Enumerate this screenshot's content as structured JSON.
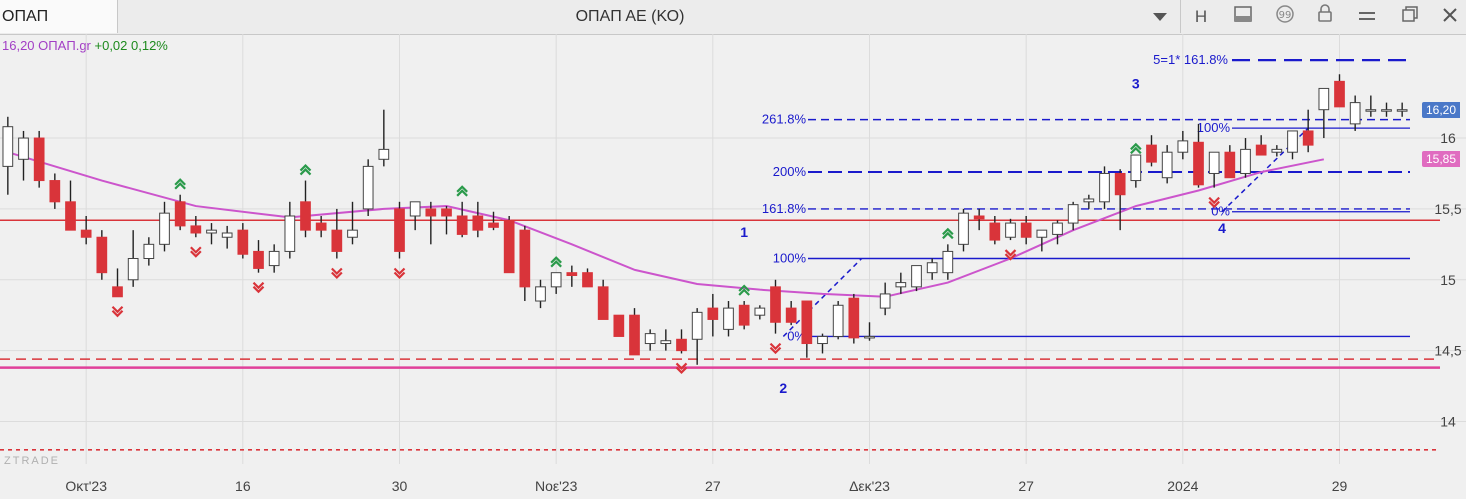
{
  "toolbar": {
    "symbol_input": "ΟΠΑΠ",
    "title": "ΟΠΑΠ ΑΕ (ΚΟ)",
    "icons": [
      "chevron-down-icon",
      "h-icon",
      "panel-icon",
      "quote-icon",
      "lock-icon",
      "minimize-icon",
      "restore-icon",
      "close-icon"
    ],
    "h_label": "H"
  },
  "quote": {
    "price_symbol": "16,20 ΟΠΑΠ.gr",
    "change": "+0,02 0,12%"
  },
  "colors": {
    "up_candle": "#ffffff",
    "down_candle": "#d9343a",
    "ma": "#cc55cc",
    "fib": "#1a1acc",
    "support": "#d9343a",
    "magenta": "#e0409a",
    "accent_tag_blue": "#4a78c8",
    "accent_tag_pink": "#e06cc0"
  },
  "price_tags": {
    "last": "16,20",
    "ma": "15,85"
  },
  "watermark": "ZTRADE",
  "chart_data": {
    "type": "candlestick",
    "x_tick_labels": [
      "Οκτ'23",
      "16",
      "30",
      "Νοε'23",
      "27",
      "Δεκ'23",
      "27",
      "2024",
      "29"
    ],
    "x_tick_positions": [
      5,
      15,
      25,
      35,
      45,
      55,
      65,
      75,
      85
    ],
    "y_ticks": [
      14,
      14.5,
      15,
      15.5,
      16
    ],
    "y_tick_labels": [
      "14",
      "14,5",
      "15",
      "15,5",
      "16"
    ],
    "ylim": [
      13.7,
      16.72
    ],
    "x_count": 90,
    "candles": [
      [
        15.8,
        16.15,
        15.6,
        16.08
      ],
      [
        15.85,
        16.05,
        15.7,
        16.0
      ],
      [
        16.0,
        16.05,
        15.65,
        15.7
      ],
      [
        15.7,
        15.75,
        15.5,
        15.55
      ],
      [
        15.55,
        15.7,
        15.35,
        15.35
      ],
      [
        15.35,
        15.45,
        15.25,
        15.3
      ],
      [
        15.3,
        15.35,
        15.0,
        15.05
      ],
      [
        14.95,
        15.08,
        14.88,
        14.88
      ],
      [
        15.0,
        15.35,
        14.95,
        15.15
      ],
      [
        15.15,
        15.3,
        15.1,
        15.25
      ],
      [
        15.25,
        15.55,
        15.2,
        15.47
      ],
      [
        15.55,
        15.6,
        15.35,
        15.38
      ],
      [
        15.38,
        15.45,
        15.3,
        15.33
      ],
      [
        15.33,
        15.4,
        15.25,
        15.35
      ],
      [
        15.3,
        15.38,
        15.22,
        15.33
      ],
      [
        15.35,
        15.4,
        15.15,
        15.18
      ],
      [
        15.2,
        15.28,
        15.05,
        15.08
      ],
      [
        15.1,
        15.25,
        15.05,
        15.2
      ],
      [
        15.2,
        15.55,
        15.15,
        15.45
      ],
      [
        15.55,
        15.7,
        15.3,
        15.35
      ],
      [
        15.4,
        15.45,
        15.3,
        15.35
      ],
      [
        15.35,
        15.5,
        15.15,
        15.2
      ],
      [
        15.3,
        15.55,
        15.25,
        15.35
      ],
      [
        15.5,
        15.85,
        15.45,
        15.8
      ],
      [
        15.85,
        16.2,
        15.8,
        15.92
      ],
      [
        15.5,
        15.55,
        15.15,
        15.2
      ],
      [
        15.45,
        15.55,
        15.35,
        15.55
      ],
      [
        15.5,
        15.55,
        15.25,
        15.45
      ],
      [
        15.5,
        15.52,
        15.32,
        15.45
      ],
      [
        15.45,
        15.55,
        15.3,
        15.32
      ],
      [
        15.45,
        15.55,
        15.3,
        15.35
      ],
      [
        15.4,
        15.48,
        15.35,
        15.37
      ],
      [
        15.42,
        15.45,
        15.05,
        15.05
      ],
      [
        15.35,
        15.38,
        14.85,
        14.95
      ],
      [
        14.85,
        15.0,
        14.8,
        14.95
      ],
      [
        14.95,
        15.05,
        14.9,
        15.05
      ],
      [
        15.05,
        15.1,
        14.95,
        15.03
      ],
      [
        15.05,
        15.08,
        14.95,
        14.95
      ],
      [
        14.95,
        15.0,
        14.72,
        14.72
      ],
      [
        14.75,
        14.75,
        14.6,
        14.6
      ],
      [
        14.75,
        14.8,
        14.47,
        14.47
      ],
      [
        14.55,
        14.65,
        14.5,
        14.62
      ],
      [
        14.55,
        14.65,
        14.5,
        14.57
      ],
      [
        14.58,
        14.65,
        14.48,
        14.5
      ],
      [
        14.58,
        14.8,
        14.4,
        14.77
      ],
      [
        14.8,
        14.9,
        14.6,
        14.72
      ],
      [
        14.65,
        14.85,
        14.6,
        14.8
      ],
      [
        14.82,
        14.85,
        14.65,
        14.68
      ],
      [
        14.75,
        14.82,
        14.72,
        14.8
      ],
      [
        14.95,
        15.0,
        14.62,
        14.7
      ],
      [
        14.8,
        14.85,
        14.68,
        14.7
      ],
      [
        14.85,
        14.85,
        14.45,
        14.55
      ],
      [
        14.55,
        14.62,
        14.48,
        14.6
      ],
      [
        14.6,
        14.85,
        14.58,
        14.82
      ],
      [
        14.87,
        14.9,
        14.55,
        14.59
      ],
      [
        14.6,
        14.7,
        14.57,
        14.6
      ],
      [
        14.8,
        14.98,
        14.75,
        14.9
      ],
      [
        14.95,
        15.05,
        14.9,
        14.98
      ],
      [
        14.95,
        15.1,
        14.92,
        15.1
      ],
      [
        15.05,
        15.15,
        15.0,
        15.12
      ],
      [
        15.05,
        15.25,
        15.0,
        15.2
      ],
      [
        15.25,
        15.5,
        15.2,
        15.47
      ],
      [
        15.45,
        15.5,
        15.35,
        15.43
      ],
      [
        15.4,
        15.45,
        15.25,
        15.28
      ],
      [
        15.3,
        15.43,
        15.28,
        15.4
      ],
      [
        15.4,
        15.45,
        15.25,
        15.3
      ],
      [
        15.3,
        15.35,
        15.2,
        15.35
      ],
      [
        15.32,
        15.42,
        15.25,
        15.4
      ],
      [
        15.4,
        15.55,
        15.35,
        15.53
      ],
      [
        15.55,
        15.6,
        15.5,
        15.57
      ],
      [
        15.55,
        15.8,
        15.5,
        15.75
      ],
      [
        15.75,
        15.78,
        15.35,
        15.6
      ],
      [
        15.7,
        15.85,
        15.65,
        15.88
      ],
      [
        15.95,
        16.02,
        15.8,
        15.83
      ],
      [
        15.72,
        15.95,
        15.68,
        15.9
      ],
      [
        15.9,
        16.05,
        15.85,
        15.98
      ],
      [
        15.97,
        16.1,
        15.65,
        15.67
      ],
      [
        15.75,
        15.9,
        15.65,
        15.9
      ],
      [
        15.9,
        15.95,
        15.72,
        15.72
      ],
      [
        15.75,
        16.0,
        15.72,
        15.92
      ],
      [
        15.95,
        16.02,
        15.88,
        15.88
      ],
      [
        15.9,
        15.95,
        15.87,
        15.92
      ],
      [
        15.9,
        16.05,
        15.85,
        16.05
      ],
      [
        16.05,
        16.2,
        15.9,
        15.95
      ],
      [
        16.2,
        16.35,
        16.0,
        16.35
      ],
      [
        16.4,
        16.45,
        16.25,
        16.22
      ],
      [
        16.1,
        16.3,
        16.05,
        16.25
      ],
      [
        16.2,
        16.3,
        16.15,
        16.2
      ],
      [
        16.2,
        16.25,
        16.15,
        16.2
      ],
      [
        16.2,
        16.25,
        16.15,
        16.2
      ]
    ],
    "ma": [
      [
        0,
        15.9
      ],
      [
        6,
        15.7
      ],
      [
        12,
        15.52
      ],
      [
        18,
        15.44
      ],
      [
        24,
        15.5
      ],
      [
        28,
        15.52
      ],
      [
        32,
        15.42
      ],
      [
        36,
        15.25
      ],
      [
        40,
        15.07
      ],
      [
        44,
        14.97
      ],
      [
        48,
        14.93
      ],
      [
        52,
        14.9
      ],
      [
        56,
        14.88
      ],
      [
        60,
        14.98
      ],
      [
        64,
        15.15
      ],
      [
        68,
        15.35
      ],
      [
        72,
        15.52
      ],
      [
        76,
        15.63
      ],
      [
        80,
        15.76
      ],
      [
        84,
        15.85
      ]
    ],
    "horizontal_lines": [
      {
        "price": 15.42,
        "label": "",
        "style": "solid",
        "color": "red"
      },
      {
        "price": 14.44,
        "label": "",
        "style": "dashed",
        "color": "red"
      },
      {
        "price": 14.38,
        "label": "",
        "style": "solid",
        "color": "magenta"
      },
      {
        "price": 13.8,
        "label": "",
        "style": "dashed",
        "color": "red"
      }
    ],
    "fibonacci_1": {
      "levels": [
        {
          "price": 14.6,
          "label": "0%"
        },
        {
          "price": 15.15,
          "label": "100%"
        },
        {
          "price": 15.5,
          "label": "161.8%"
        },
        {
          "price": 15.76,
          "label": "200%"
        },
        {
          "price": 16.13,
          "label": "261.8%"
        }
      ]
    },
    "fibonacci_2": {
      "levels": [
        {
          "price": 15.48,
          "label": "0%"
        },
        {
          "price": 16.07,
          "label": "100%"
        },
        {
          "price": 16.55,
          "label": "5=1* 161.8%"
        }
      ]
    },
    "wave_labels": [
      {
        "x": 47,
        "price": 15.3,
        "label": "1"
      },
      {
        "x": 49.5,
        "price": 14.2,
        "label": "2"
      },
      {
        "x": 72,
        "price": 16.35,
        "label": "3"
      },
      {
        "x": 77.5,
        "price": 15.33,
        "label": "4"
      }
    ],
    "up_markers": [
      11,
      19,
      29,
      35,
      47,
      60,
      72
    ],
    "down_markers": [
      7,
      12,
      16,
      21,
      25,
      43,
      49,
      64,
      77
    ]
  }
}
